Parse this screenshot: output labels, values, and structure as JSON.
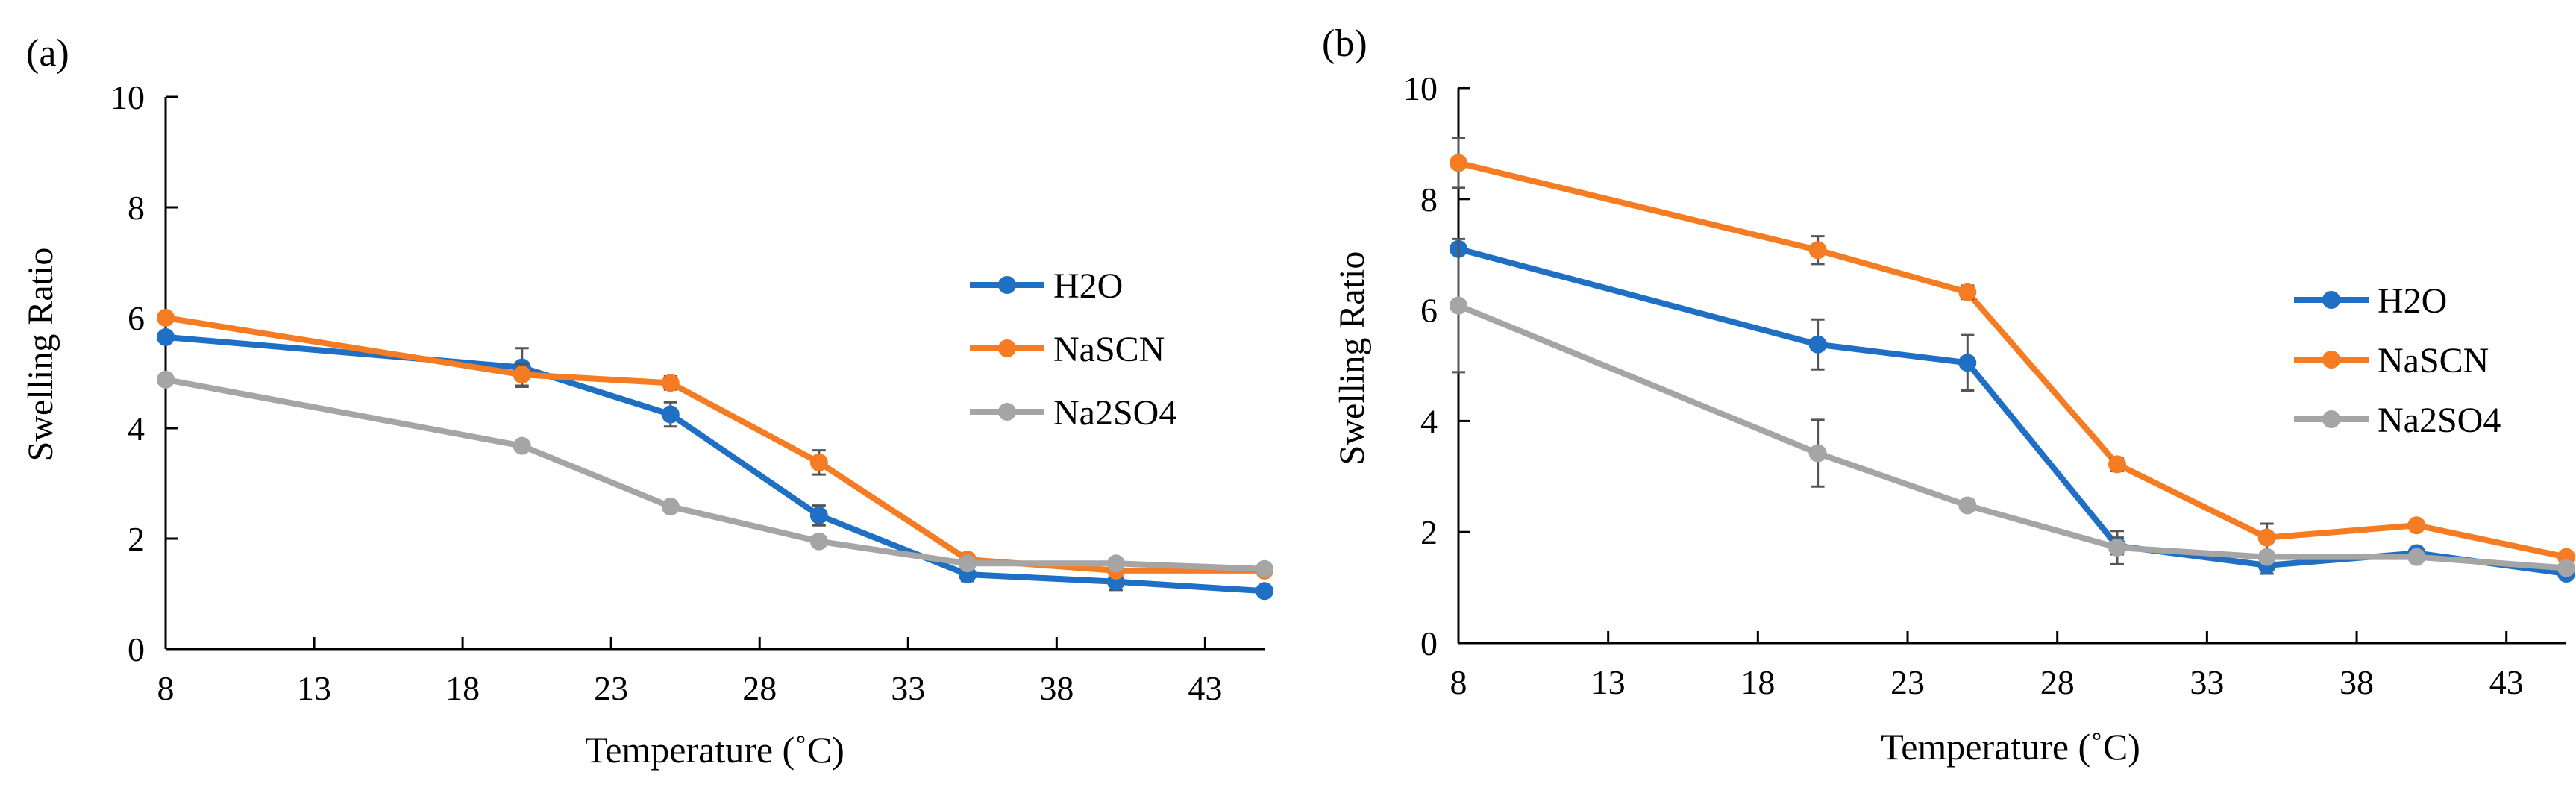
{
  "colors": {
    "H2O": "#1f6fc5",
    "NaSCN": "#f57c22",
    "Na2SO4": "#a5a5a5",
    "axis": "#000000",
    "errorbar": "#555555"
  },
  "chart_data": [
    {
      "type": "line",
      "panel_label": "(a)",
      "xlabel": "Temperature (˚C)",
      "ylabel": "Swelling Ratio",
      "xlim": [
        8,
        45
      ],
      "ylim": [
        0,
        10
      ],
      "xticks": [
        8,
        13,
        18,
        23,
        28,
        33,
        38,
        43
      ],
      "yticks": [
        0,
        2,
        4,
        6,
        8,
        10
      ],
      "x": [
        8,
        20,
        25,
        30,
        35,
        40,
        45
      ],
      "legend_position": "right",
      "series": [
        {
          "name": "H2O",
          "key": "H2O",
          "values": [
            5.65,
            5.1,
            4.25,
            2.42,
            1.35,
            1.22,
            1.05
          ],
          "errors": [
            0,
            0.35,
            0.22,
            0.18,
            0.12,
            0.15,
            0.05
          ]
        },
        {
          "name": "NaSCN",
          "key": "NaSCN",
          "values": [
            6.0,
            4.97,
            4.82,
            3.38,
            1.62,
            1.42,
            1.42
          ],
          "errors": [
            0,
            0.2,
            0.12,
            0.22,
            0.08,
            0.08,
            0.05
          ]
        },
        {
          "name": "Na2SO4",
          "key": "Na2SO4",
          "values": [
            4.88,
            3.68,
            2.58,
            1.95,
            1.55,
            1.55,
            1.45
          ],
          "errors": [
            0,
            0.05,
            0.05,
            0.05,
            0.08,
            0.05,
            0.05
          ]
        }
      ]
    },
    {
      "type": "line",
      "panel_label": "(b)",
      "xlabel": "Temperature (˚C)",
      "ylabel": "Swelling Ratio",
      "xlim": [
        8,
        45
      ],
      "ylim": [
        0,
        10
      ],
      "xticks": [
        8,
        13,
        18,
        23,
        28,
        33,
        38,
        43
      ],
      "yticks": [
        0,
        2,
        4,
        6,
        8,
        10
      ],
      "x": [
        8,
        20,
        25,
        30,
        35,
        40,
        45
      ],
      "legend_position": "right",
      "series": [
        {
          "name": "H2O",
          "key": "H2O",
          "values": [
            7.1,
            5.38,
            5.05,
            1.75,
            1.4,
            1.62,
            1.25
          ],
          "errors": [
            0,
            0.45,
            0.5,
            0.15,
            0.15,
            0.1,
            0.08
          ]
        },
        {
          "name": "NaSCN",
          "key": "NaSCN",
          "values": [
            8.65,
            7.08,
            6.32,
            3.22,
            1.9,
            2.12,
            1.55
          ],
          "errors": [
            0.45,
            0.25,
            0.12,
            0.12,
            0.25,
            0.08,
            0.05
          ]
        },
        {
          "name": "Na2SO4",
          "key": "Na2SO4",
          "values": [
            6.08,
            3.42,
            2.48,
            1.72,
            1.55,
            1.55,
            1.35
          ],
          "errors": [
            1.2,
            0.6,
            0.1,
            0.3,
            0.1,
            0.05,
            0.05
          ]
        }
      ]
    }
  ]
}
